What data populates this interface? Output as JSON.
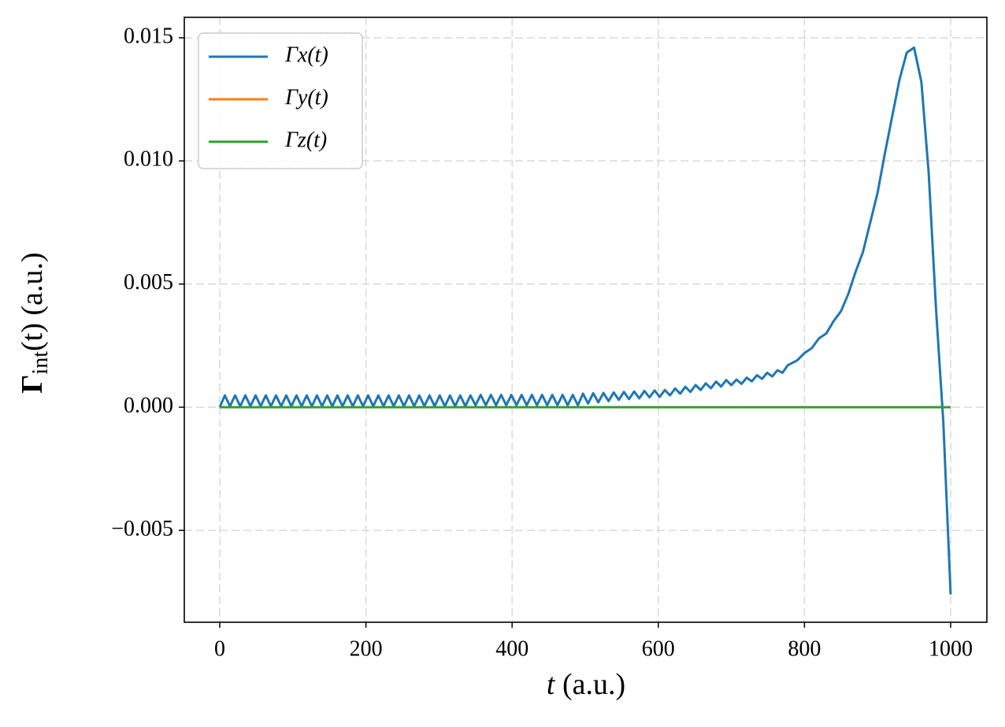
{
  "chart_data": {
    "type": "line",
    "xlabel": {
      "symbol": "t",
      "rest": "(a.u.)"
    },
    "ylabel": {
      "symbol": "Γ",
      "subscript": "int",
      "rest": "(t) (a.u.)"
    },
    "x": [
      0,
      7,
      14,
      21,
      28,
      35,
      42,
      49,
      56,
      63,
      70,
      77,
      84,
      91,
      98,
      105,
      112,
      119,
      126,
      133,
      140,
      147,
      154,
      161,
      168,
      175,
      182,
      189,
      196,
      203,
      210,
      217,
      224,
      231,
      238,
      245,
      252,
      259,
      266,
      273,
      280,
      287,
      294,
      301,
      308,
      315,
      322,
      329,
      336,
      343,
      350,
      357,
      364,
      371,
      378,
      385,
      392,
      399,
      406,
      413,
      420,
      427,
      434,
      441,
      448,
      455,
      462,
      469,
      476,
      483,
      490,
      497,
      504,
      511,
      518,
      525,
      532,
      539,
      546,
      553,
      560,
      567,
      574,
      581,
      588,
      595,
      602,
      609,
      616,
      623,
      630,
      637,
      644,
      651,
      658,
      665,
      672,
      679,
      686,
      693,
      700,
      707,
      714,
      721,
      728,
      735,
      742,
      749,
      756,
      763,
      770,
      777,
      790,
      800,
      810,
      820,
      830,
      840,
      850,
      860,
      870,
      880,
      890,
      900,
      910,
      920,
      930,
      940,
      950,
      960,
      970,
      980,
      990,
      1000
    ],
    "series": [
      {
        "name": "Γx(t)",
        "color": "#1f77b4",
        "values": [
          0,
          0.00048,
          4e-05,
          0.00048,
          4e-05,
          0.00048,
          4e-05,
          0.00048,
          4e-05,
          0.00048,
          4e-05,
          0.00048,
          4e-05,
          0.00048,
          4e-05,
          0.00048,
          4e-05,
          0.00048,
          4e-05,
          0.00048,
          4e-05,
          0.00048,
          4e-05,
          0.00048,
          4e-05,
          0.00048,
          4e-05,
          0.00048,
          4e-05,
          0.00048,
          4e-05,
          0.00048,
          4e-05,
          0.00048,
          4e-05,
          0.00048,
          4e-05,
          0.00048,
          4e-05,
          0.00048,
          4e-05,
          0.00048,
          4e-05,
          0.00048,
          4e-05,
          0.00048,
          4e-05,
          0.00048,
          4e-05,
          0.00048,
          8e-05,
          0.0005,
          8e-05,
          0.0005,
          8e-05,
          0.0005,
          8e-05,
          0.0005,
          8e-05,
          0.0005,
          8e-05,
          0.0005,
          8e-05,
          0.0005,
          8e-05,
          0.0005,
          8e-05,
          0.0005,
          8e-05,
          0.0005,
          8e-05,
          0.00055,
          0.00015,
          0.00057,
          0.0002,
          0.00058,
          0.00025,
          0.0006,
          0.0003,
          0.00062,
          0.00033,
          0.00064,
          0.00036,
          0.00066,
          0.0004,
          0.00068,
          0.00042,
          0.0007,
          0.00048,
          0.00076,
          0.00055,
          0.00083,
          0.00062,
          0.0009,
          0.0007,
          0.00097,
          0.00077,
          0.00104,
          0.00084,
          0.0011,
          0.0009,
          0.00112,
          0.00095,
          0.0012,
          0.00105,
          0.0013,
          0.00115,
          0.0014,
          0.00125,
          0.0015,
          0.0014,
          0.0017,
          0.0019,
          0.0022,
          0.0024,
          0.0028,
          0.003,
          0.0035,
          0.0039,
          0.0046,
          0.0055,
          0.0063,
          0.0075,
          0.0087,
          0.0103,
          0.0118,
          0.0133,
          0.0144,
          0.0146,
          0.0132,
          0.0095,
          0.004,
          -0.0006,
          -0.0076
        ]
      },
      {
        "name": "Γy(t)",
        "color": "#ff7f0e",
        "values": [
          0,
          0,
          0,
          0,
          0,
          0,
          0,
          0,
          0,
          0,
          0,
          0,
          0,
          0,
          0,
          0,
          0,
          0,
          0,
          0,
          0,
          0,
          0,
          0,
          0,
          0,
          0,
          0,
          0,
          0,
          0,
          0,
          0,
          0,
          0,
          0,
          0,
          0,
          0,
          0,
          0,
          0,
          0,
          0,
          0,
          0,
          0,
          0,
          0,
          0,
          0,
          0,
          0,
          0,
          0,
          0,
          0,
          0,
          0,
          0,
          0,
          0,
          0,
          0,
          0,
          0,
          0,
          0,
          0,
          0,
          0,
          0,
          0,
          0,
          0,
          0,
          0,
          0,
          0,
          0,
          0,
          0,
          0,
          0,
          0,
          0,
          0,
          0,
          0,
          0,
          0,
          0,
          0,
          0,
          0,
          0,
          0,
          0,
          0,
          0,
          0,
          0,
          0,
          0,
          0,
          0,
          0,
          0,
          0,
          0,
          0,
          0,
          0,
          0,
          0,
          0,
          0,
          0,
          0,
          0,
          0,
          0,
          0,
          0,
          0,
          0,
          0,
          0,
          0,
          0,
          0,
          0,
          0,
          0
        ]
      },
      {
        "name": "Γz(t)",
        "color": "#2ca02c",
        "values": [
          0,
          0,
          0,
          0,
          0,
          0,
          0,
          0,
          0,
          0,
          0,
          0,
          0,
          0,
          0,
          0,
          0,
          0,
          0,
          0,
          0,
          0,
          0,
          0,
          0,
          0,
          0,
          0,
          0,
          0,
          0,
          0,
          0,
          0,
          0,
          0,
          0,
          0,
          0,
          0,
          0,
          0,
          0,
          0,
          0,
          0,
          0,
          0,
          0,
          0,
          0,
          0,
          0,
          0,
          0,
          0,
          0,
          0,
          0,
          0,
          0,
          0,
          0,
          0,
          0,
          0,
          0,
          0,
          0,
          0,
          0,
          0,
          0,
          0,
          0,
          0,
          0,
          0,
          0,
          0,
          0,
          0,
          0,
          0,
          0,
          0,
          0,
          0,
          0,
          0,
          0,
          0,
          0,
          0,
          0,
          0,
          0,
          0,
          0,
          0,
          0,
          0,
          0,
          0,
          0,
          0,
          0,
          0,
          0,
          0,
          0,
          0,
          0,
          0,
          0,
          0,
          0,
          0,
          0,
          0,
          0,
          0,
          0,
          0,
          0,
          0,
          0,
          0,
          0,
          0,
          0,
          0,
          0,
          0
        ]
      }
    ],
    "xlim": [
      -48.5,
      1049.6
    ],
    "ylim": [
      -0.00873,
      0.01583
    ],
    "xticks": [
      0,
      200,
      400,
      600,
      800,
      1000
    ],
    "yticks": [
      {
        "value": -0.005,
        "label": "−0.005"
      },
      {
        "value": 0,
        "label": "0.000"
      },
      {
        "value": 0.005,
        "label": "0.005"
      },
      {
        "value": 0.01,
        "label": "0.010"
      },
      {
        "value": 0.015,
        "label": "0.015"
      }
    ],
    "grid": true,
    "legend": "upper left"
  }
}
